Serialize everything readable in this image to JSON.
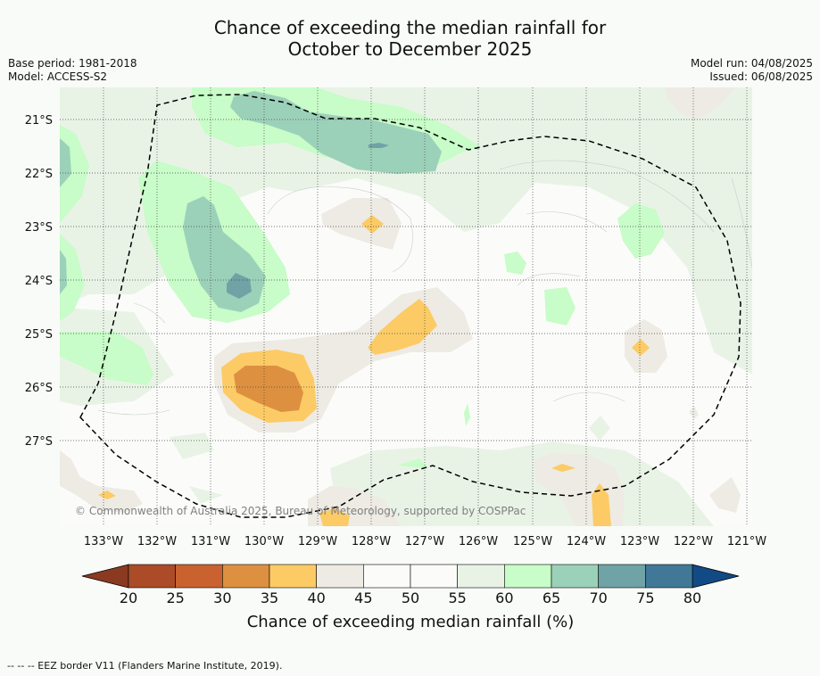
{
  "title_line1": "Chance of exceeding the median rainfall for",
  "title_line2": "October to December 2025",
  "base_period": "Base period: 1981-2018",
  "model": "Model: ACCESS-S2",
  "model_run": "Model run: 04/08/2025",
  "issued": "Issued: 06/08/2025",
  "copyright": "© Commonwealth of Australia 2025, Bureau of Meteorology, supported by COSPPac",
  "lat_labels": [
    "21°S",
    "22°S",
    "23°S",
    "24°S",
    "25°S",
    "26°S",
    "27°S"
  ],
  "lon_labels": [
    "133°W",
    "132°W",
    "131°W",
    "130°W",
    "129°W",
    "128°W",
    "127°W",
    "126°W",
    "125°W",
    "124°W",
    "123°W",
    "122°W",
    "121°W"
  ],
  "colorbar": {
    "ticks": [
      "20",
      "25",
      "30",
      "35",
      "40",
      "45",
      "50",
      "55",
      "60",
      "65",
      "70",
      "75",
      "80"
    ],
    "label": "Chance of exceeding median rainfall (%)",
    "colors": [
      "#ac4b27",
      "#c9622f",
      "#de9041",
      "#fccb65",
      "#eeebe4",
      "#fbfcfa",
      "#fbfcfa",
      "#e8f3e6",
      "#c8fcc8",
      "#9cd1b9",
      "#6fa3a6",
      "#417897"
    ],
    "under_color": "#8b3a22",
    "over_color": "#124a85"
  },
  "map_colors": {
    "background": "#fbfcfa",
    "c35_40": "#fccb65",
    "c30_35": "#de9041",
    "c40_45": "#eeebe4",
    "c55_60": "#e8f3e6",
    "c60_65": "#c8fcc8",
    "c65_70": "#9cd1b9",
    "c70_75": "#6fa3a6"
  },
  "legend_note": "-- -- -- EEZ border V11 (Flanders Marine Institute, 2019)."
}
